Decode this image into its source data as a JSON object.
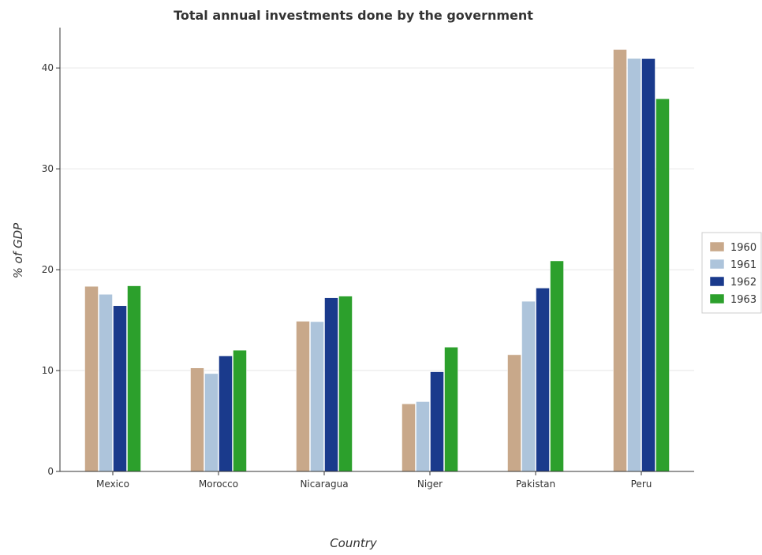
{
  "chart_data": {
    "type": "bar",
    "title": "Total annual investments done by the government",
    "xlabel": "Country",
    "ylabel": "% of GDP",
    "categories": [
      "Mexico",
      "Morocco",
      "Nicaragua",
      "Niger",
      "Pakistan",
      "Peru"
    ],
    "series": [
      {
        "name": "1960",
        "color": "#c8a88a",
        "values": [
          18.35,
          10.26,
          14.89,
          6.7,
          11.57,
          41.83
        ]
      },
      {
        "name": "1961",
        "color": "#adc4db",
        "values": [
          17.56,
          9.7,
          14.85,
          6.92,
          16.87,
          40.94
        ]
      },
      {
        "name": "1962",
        "color": "#1a3a8c",
        "values": [
          16.43,
          11.45,
          17.22,
          9.88,
          18.18,
          40.92
        ]
      },
      {
        "name": "1963",
        "color": "#2ca02c",
        "values": [
          18.4,
          12.02,
          17.38,
          12.32,
          20.87,
          36.94
        ]
      }
    ],
    "yticks": [
      0,
      10,
      20,
      30,
      40
    ],
    "ylim": [
      0,
      44
    ],
    "grid": true,
    "legend_position": "right"
  }
}
